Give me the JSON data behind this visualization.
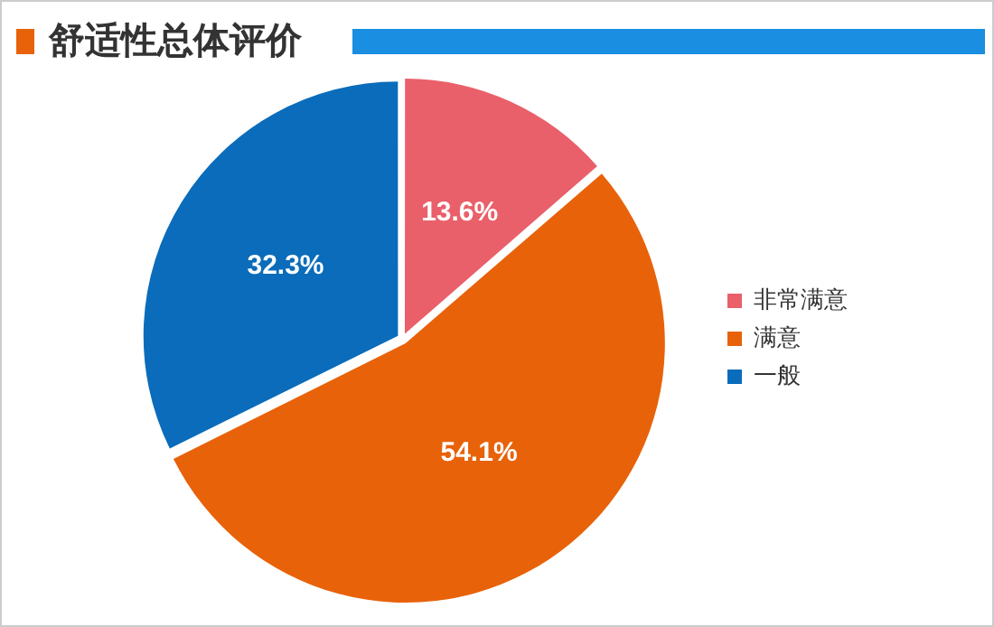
{
  "chart_data": {
    "type": "pie",
    "title": "舒适性总体评价",
    "categories": [
      "非常满意",
      "满意",
      "一般"
    ],
    "values": [
      13.6,
      54.1,
      32.3
    ],
    "colors": [
      "#e9606a",
      "#e8620a",
      "#0a6cba"
    ],
    "value_labels": [
      "13.6%",
      "54.1%",
      "32.3%"
    ],
    "legend": "right"
  }
}
